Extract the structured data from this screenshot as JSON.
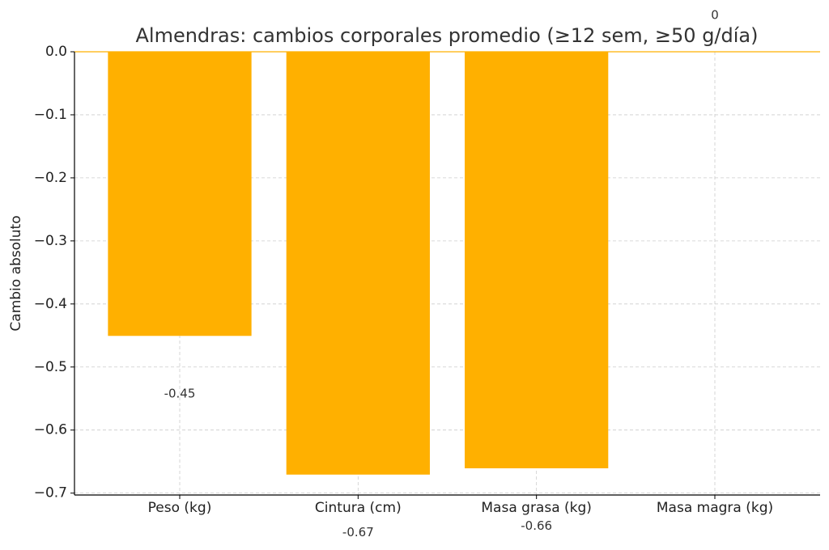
{
  "chart_data": {
    "type": "bar",
    "title": "Almendras: cambios corporales promedio (≥12 sem, ≥50 g/día)",
    "y_label": "Cambio absoluto",
    "categories": [
      "Peso (kg)",
      "Cintura (cm)",
      "Masa grasa (kg)",
      "Masa magra (kg)"
    ],
    "values": [
      -0.45,
      -0.67,
      -0.66,
      0
    ],
    "color": "#ffb000",
    "ylim": [
      -0.703,
      0
    ],
    "yticks": [
      {
        "value": 0,
        "label": "0.0"
      },
      {
        "value": -0.1,
        "label": "−0.1"
      },
      {
        "value": -0.2,
        "label": "−0.2"
      },
      {
        "value": -0.3,
        "label": "−0.3"
      },
      {
        "value": -0.4,
        "label": "−0.4"
      },
      {
        "value": -0.5,
        "label": "−0.5"
      },
      {
        "value": -0.6,
        "label": "−0.6"
      },
      {
        "value": -0.7,
        "label": "−0.7"
      }
    ],
    "grid": true
  }
}
